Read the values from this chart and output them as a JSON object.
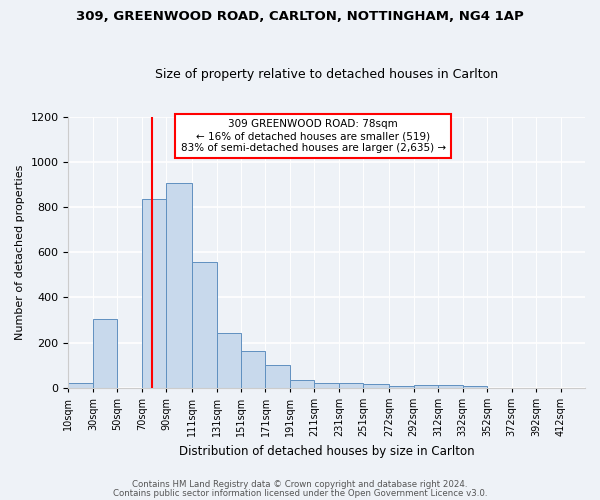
{
  "title1": "309, GREENWOOD ROAD, CARLTON, NOTTINGHAM, NG4 1AP",
  "title2": "Size of property relative to detached houses in Carlton",
  "xlabel": "Distribution of detached houses by size in Carlton",
  "ylabel": "Number of detached properties",
  "bar_color": "#c8d9ec",
  "bar_edge_color": "#6090c0",
  "categories": [
    "10sqm",
    "30sqm",
    "50sqm",
    "70sqm",
    "90sqm",
    "111sqm",
    "131sqm",
    "151sqm",
    "171sqm",
    "191sqm",
    "211sqm",
    "231sqm",
    "251sqm",
    "272sqm",
    "292sqm",
    "312sqm",
    "332sqm",
    "352sqm",
    "372sqm",
    "392sqm",
    "412sqm"
  ],
  "values": [
    20,
    305,
    0,
    835,
    905,
    555,
    240,
    163,
    100,
    33,
    20,
    22,
    15,
    8,
    10,
    10,
    8,
    0,
    0,
    0,
    0
  ],
  "red_line_x": 78,
  "bin_edges": [
    10,
    30,
    50,
    70,
    90,
    111,
    131,
    151,
    171,
    191,
    211,
    231,
    251,
    272,
    292,
    312,
    332,
    352,
    372,
    392,
    412,
    432
  ],
  "annotation_text": "309 GREENWOOD ROAD: 78sqm\n← 16% of detached houses are smaller (519)\n83% of semi-detached houses are larger (2,635) →",
  "annotation_box_color": "white",
  "annotation_box_edge_color": "red",
  "ylim": [
    0,
    1200
  ],
  "yticks": [
    0,
    200,
    400,
    600,
    800,
    1000,
    1200
  ],
  "footer1": "Contains HM Land Registry data © Crown copyright and database right 2024.",
  "footer2": "Contains public sector information licensed under the Open Government Licence v3.0.",
  "bg_color": "#eef2f7"
}
